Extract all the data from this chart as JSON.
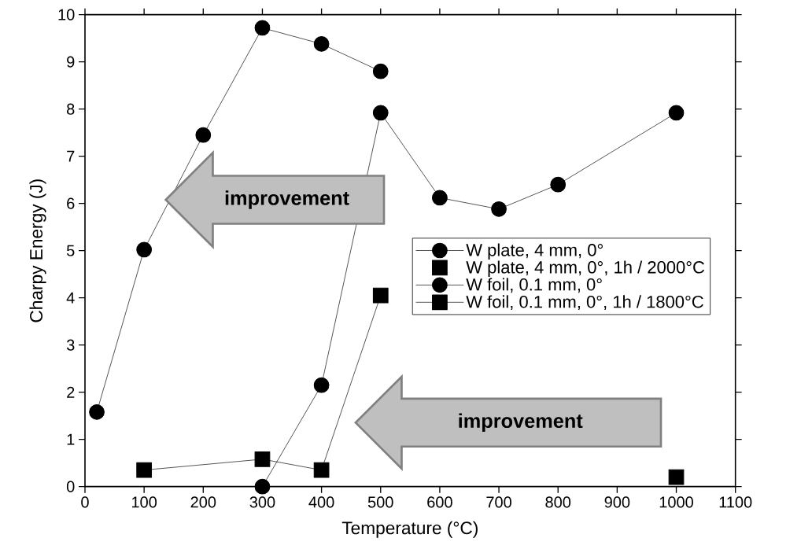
{
  "chart_data": {
    "type": "line",
    "xlabel": "Temperature (°C)",
    "ylabel": "Charpy Energy (J)",
    "xlim": [
      0,
      1100
    ],
    "xticks": [
      0,
      100,
      200,
      300,
      400,
      500,
      600,
      700,
      800,
      900,
      1000,
      1100
    ],
    "ylim": [
      0,
      10
    ],
    "yticks": [
      0,
      1,
      2,
      3,
      4,
      5,
      6,
      7,
      8,
      9,
      10
    ],
    "legend": "right",
    "grid": false,
    "line_style": "solid",
    "annotations": [
      "improvement",
      "improvement"
    ],
    "series": [
      {
        "name": "W plate, 4 mm, 0°",
        "color": "#000000",
        "marker": "circle",
        "x": [
          300,
          400,
          500,
          600,
          700,
          800,
          1000
        ],
        "values": [
          0,
          2.15,
          7.92,
          6.12,
          5.88,
          6.4,
          7.92
        ]
      },
      {
        "name": "W plate, 4 mm, 0°, 1h / 2000°C",
        "type": "scatter",
        "color": "#000000",
        "marker": "square",
        "x": [
          1000
        ],
        "values": [
          0.2
        ]
      },
      {
        "name": "W foil, 0.1 mm, 0°",
        "color": "#000000",
        "marker": "circle",
        "x": [
          20,
          100,
          200,
          300,
          400,
          500
        ],
        "values": [
          1.58,
          5.02,
          7.45,
          9.72,
          9.38,
          8.8
        ]
      },
      {
        "name": "W foil, 0.1 mm, 0°, 1h / 1800°C",
        "color": "#000000",
        "marker": "square",
        "x": [
          100,
          300,
          400,
          500
        ],
        "values": [
          0.35,
          0.58,
          0.35,
          4.05
        ]
      }
    ]
  }
}
